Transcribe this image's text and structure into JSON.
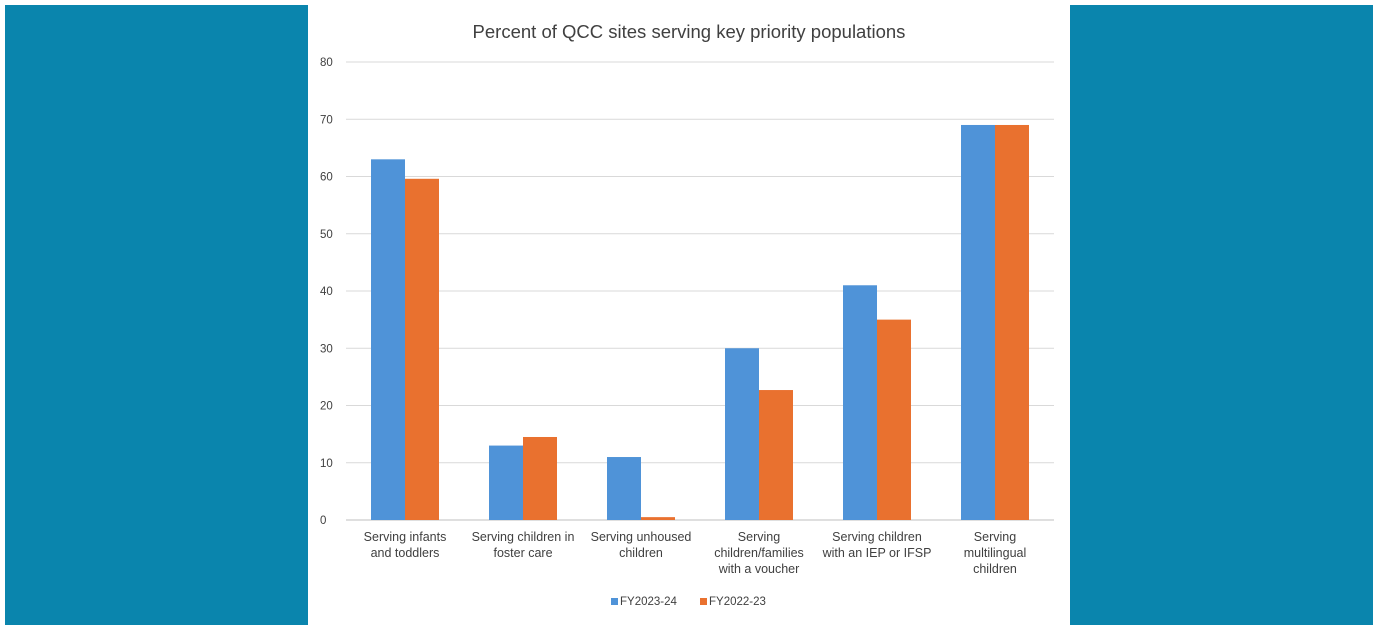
{
  "colors": {
    "background": "#0a85ad",
    "panel": "#ffffff",
    "series_1": "#4f93d8",
    "series_2": "#e9712f",
    "grid": "#d9d9d9",
    "text": "#404040"
  },
  "chart_data": {
    "type": "bar",
    "title": "Percent of QCC sites serving key priority populations",
    "xlabel": "",
    "ylabel": "",
    "ylim": [
      0,
      80
    ],
    "yticks": [
      0,
      10,
      20,
      30,
      40,
      50,
      60,
      70,
      80
    ],
    "grid": true,
    "legend_position": "bottom",
    "categories": [
      [
        "Serving infants",
        "and toddlers"
      ],
      [
        "Serving children in",
        "foster care"
      ],
      [
        "Serving unhoused",
        "children"
      ],
      [
        "Serving",
        "children/families",
        "with a voucher"
      ],
      [
        "Serving children",
        "with an IEP or IFSP"
      ],
      [
        "Serving",
        "multilingual",
        "children"
      ]
    ],
    "series": [
      {
        "name": "FY2023-24",
        "color": "#4f93d8",
        "values": [
          63,
          13,
          11,
          30,
          41,
          69
        ]
      },
      {
        "name": "FY2022-23",
        "color": "#e9712f",
        "values": [
          59.6,
          14.5,
          0.5,
          22.7,
          35,
          69
        ]
      }
    ]
  }
}
